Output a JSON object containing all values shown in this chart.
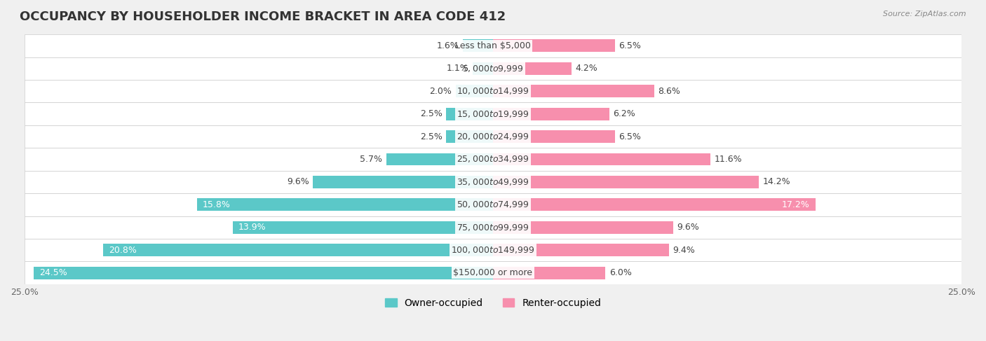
{
  "title": "OCCUPANCY BY HOUSEHOLDER INCOME BRACKET IN AREA CODE 412",
  "source": "Source: ZipAtlas.com",
  "categories": [
    "Less than $5,000",
    "$5,000 to $9,999",
    "$10,000 to $14,999",
    "$15,000 to $19,999",
    "$20,000 to $24,999",
    "$25,000 to $34,999",
    "$35,000 to $49,999",
    "$50,000 to $74,999",
    "$75,000 to $99,999",
    "$100,000 to $149,999",
    "$150,000 or more"
  ],
  "owner_values": [
    1.6,
    1.1,
    2.0,
    2.5,
    2.5,
    5.7,
    9.6,
    15.8,
    13.9,
    20.8,
    24.5
  ],
  "renter_values": [
    6.5,
    4.2,
    8.6,
    6.2,
    6.5,
    11.6,
    14.2,
    17.2,
    9.6,
    9.4,
    6.0
  ],
  "owner_color": "#5BC8C8",
  "renter_color": "#F78FAD",
  "background_color": "#f0f0f0",
  "bar_background": "#ffffff",
  "xlim": 25.0,
  "bar_height": 0.55,
  "title_fontsize": 13,
  "label_fontsize": 9,
  "tick_fontsize": 9,
  "legend_fontsize": 10
}
